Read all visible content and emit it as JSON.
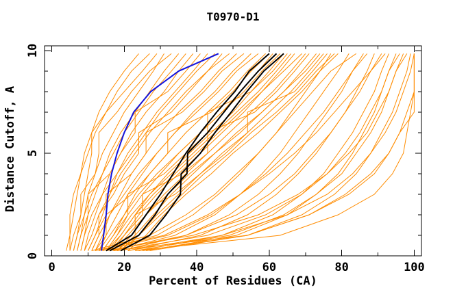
{
  "chart_data": {
    "type": "line",
    "title": "T0970-D1",
    "xlabel": "Percent of Residues (CA)",
    "ylabel": "Distance Cutoff, A",
    "xlim": [
      -2,
      102
    ],
    "ylim": [
      0,
      10.23
    ],
    "x_major_ticks": [
      0,
      20,
      40,
      60,
      80,
      100
    ],
    "x_major_labels": [
      "0",
      "20",
      "40",
      "60",
      "80",
      "100"
    ],
    "x_minor_ticks": [
      10,
      30,
      50,
      70,
      90
    ],
    "y_major_ticks": [
      0,
      5,
      10
    ],
    "y_major_labels": [
      "0",
      "5",
      "10"
    ],
    "y_minor_ticks": [
      1,
      2,
      3,
      4,
      6,
      7,
      8,
      9
    ],
    "legend": "none",
    "grid": false,
    "colors": {
      "background": "#ffffff",
      "frame": "#000000",
      "models": "#ff8c00",
      "highlight_black": "#000000",
      "highlight_blue": "#1414dd"
    },
    "y_levels": [
      0.25,
      1,
      2,
      3,
      4,
      5,
      6,
      7,
      8,
      9,
      9.85
    ],
    "series": [
      {
        "name": "model-curve-orange",
        "color": "#ff8c00",
        "width": 1,
        "curves": [
          [
            4,
            5,
            5,
            6,
            8,
            9,
            11,
            13,
            16,
            20,
            24
          ],
          [
            5,
            5,
            6,
            7,
            8,
            10,
            12,
            15,
            18,
            22,
            27
          ],
          [
            6,
            7,
            8,
            9,
            10,
            11,
            11,
            15,
            20,
            25,
            29
          ],
          [
            7,
            8,
            9,
            10,
            12,
            14,
            17,
            20,
            24,
            28,
            31
          ],
          [
            5,
            6,
            8,
            8,
            12,
            13,
            13,
            18,
            22,
            27,
            33
          ],
          [
            8,
            9,
            10,
            12,
            14,
            16,
            19,
            23,
            27,
            31,
            35
          ],
          [
            6,
            7,
            9,
            11,
            14,
            17,
            20,
            24,
            28,
            33,
            37
          ],
          [
            9,
            10,
            12,
            14,
            16,
            19,
            22,
            26,
            31,
            35,
            39
          ],
          [
            7,
            8,
            10,
            10,
            16,
            19,
            23,
            23,
            32,
            37,
            41
          ],
          [
            10,
            12,
            14,
            16,
            18,
            21,
            25,
            29,
            34,
            39,
            43
          ],
          [
            8,
            9,
            11,
            14,
            18,
            22,
            26,
            30,
            35,
            40,
            45
          ],
          [
            11,
            13,
            13,
            17,
            20,
            24,
            24,
            33,
            38,
            43,
            47
          ],
          [
            9,
            11,
            13,
            16,
            19,
            23,
            27,
            32,
            37,
            43,
            49
          ],
          [
            12,
            14,
            16,
            19,
            22,
            26,
            30,
            35,
            41,
            46,
            51
          ],
          [
            10,
            12,
            15,
            15,
            22,
            26,
            26,
            36,
            42,
            47,
            53
          ],
          [
            13,
            15,
            18,
            21,
            25,
            29,
            34,
            39,
            45,
            50,
            55
          ],
          [
            11,
            13,
            16,
            20,
            24,
            29,
            34,
            40,
            46,
            51,
            57
          ],
          [
            14,
            17,
            20,
            23,
            27,
            32,
            37,
            43,
            49,
            54,
            59
          ],
          [
            12,
            15,
            15,
            22,
            27,
            32,
            32,
            44,
            50,
            55,
            60
          ],
          [
            15,
            18,
            21,
            25,
            30,
            35,
            41,
            47,
            52,
            57,
            61
          ],
          [
            13,
            16,
            20,
            24,
            29,
            35,
            41,
            47,
            53,
            58,
            63
          ],
          [
            16,
            19,
            23,
            27,
            32,
            38,
            44,
            50,
            55,
            60,
            64
          ],
          [
            14,
            17,
            21,
            21,
            31,
            37,
            43,
            43,
            55,
            61,
            65
          ],
          [
            17,
            20,
            24,
            29,
            35,
            41,
            47,
            53,
            58,
            63,
            67
          ],
          [
            15,
            19,
            23,
            28,
            34,
            40,
            46,
            52,
            58,
            64,
            69
          ],
          [
            18,
            22,
            26,
            31,
            37,
            43,
            49,
            55,
            61,
            66,
            70
          ],
          [
            16,
            20,
            25,
            25,
            36,
            43,
            43,
            56,
            62,
            67,
            71
          ],
          [
            19,
            23,
            28,
            33,
            39,
            45,
            52,
            58,
            64,
            69,
            73
          ],
          [
            17,
            21,
            26,
            32,
            38,
            45,
            51,
            58,
            64,
            70,
            74
          ],
          [
            20,
            24,
            29,
            35,
            41,
            48,
            54,
            60,
            66,
            71,
            75
          ],
          [
            18,
            23,
            23,
            34,
            41,
            47,
            54,
            54,
            67,
            72,
            76
          ],
          [
            21,
            26,
            31,
            37,
            44,
            50,
            57,
            63,
            69,
            74,
            77
          ],
          [
            15,
            18,
            22,
            27,
            33,
            39,
            45,
            51,
            57,
            62,
            66
          ],
          [
            19,
            24,
            30,
            36,
            42,
            49,
            55,
            62,
            68,
            73,
            78
          ],
          [
            13,
            29,
            39,
            46,
            52,
            57,
            62,
            66,
            70,
            74,
            79
          ],
          [
            17,
            34,
            45,
            52,
            58,
            63,
            67,
            71,
            75,
            79,
            82
          ],
          [
            11,
            27,
            37,
            45,
            51,
            57,
            62,
            67,
            72,
            77,
            84
          ],
          [
            19,
            37,
            49,
            57,
            63,
            68,
            72,
            76,
            80,
            83,
            86
          ],
          [
            14,
            32,
            44,
            52,
            59,
            65,
            70,
            75,
            79,
            83,
            87
          ],
          [
            21,
            41,
            54,
            62,
            68,
            73,
            77,
            81,
            84,
            87,
            89
          ],
          [
            16,
            37,
            51,
            60,
            67,
            72,
            77,
            81,
            85,
            88,
            91
          ],
          [
            24,
            47,
            61,
            69,
            75,
            79,
            83,
            86,
            89,
            91,
            93
          ],
          [
            12,
            31,
            43,
            52,
            60,
            67,
            73,
            78,
            83,
            88,
            92
          ],
          [
            26,
            51,
            65,
            73,
            79,
            83,
            86,
            89,
            91,
            93,
            95
          ],
          [
            18,
            43,
            59,
            69,
            76,
            81,
            85,
            88,
            91,
            93,
            96
          ],
          [
            23,
            49,
            64,
            73,
            80,
            84,
            88,
            91,
            93,
            95,
            97
          ],
          [
            15,
            39,
            57,
            68,
            76,
            82,
            87,
            90,
            93,
            95,
            98
          ],
          [
            27,
            54,
            69,
            78,
            84,
            88,
            91,
            94,
            96,
            98,
            99
          ],
          [
            21,
            47,
            65,
            76,
            83,
            88,
            92,
            95,
            97,
            99,
            100
          ],
          [
            25,
            54,
            71,
            81,
            88,
            93,
            96,
            100,
            100,
            100,
            100
          ],
          [
            17,
            54,
            71,
            82,
            89,
            93,
            96,
            98,
            100,
            100,
            100
          ],
          [
            23,
            63,
            79,
            89,
            94,
            97,
            98,
            99,
            100,
            100,
            100
          ]
        ]
      },
      {
        "name": "highlight-curve-blue",
        "color": "#1414dd",
        "width": 2,
        "curves": [
          [
            13.7,
            14.3,
            15,
            15.5,
            16.5,
            18,
            20,
            22.6,
            27.3,
            35,
            46
          ]
        ]
      },
      {
        "name": "highlight-curve-black",
        "color": "#000000",
        "width": 2,
        "curves": [
          [
            15,
            22,
            26,
            30,
            33.5,
            37,
            41,
            45.5,
            50.5,
            54.5,
            60
          ],
          [
            16,
            24,
            28.5,
            32,
            37.3,
            37.5,
            43,
            47.5,
            52,
            57,
            62
          ],
          [
            19,
            27,
            31.5,
            35.5,
            35.7,
            41,
            45,
            49.5,
            53.8,
            58.5,
            64
          ]
        ]
      }
    ]
  }
}
